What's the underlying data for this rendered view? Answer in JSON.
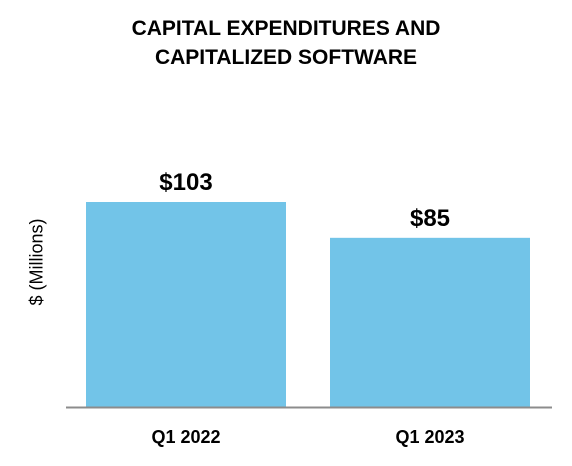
{
  "colors": {
    "bar": "#72C4E8",
    "axis": "#8C8C8C",
    "text": "#000000"
  },
  "chart_data": {
    "type": "bar",
    "title_lines": [
      "CAPITAL EXPENDITURES AND",
      "CAPITALIZED SOFTWARE"
    ],
    "ylabel": "$ (Millions)",
    "xlabel": "",
    "categories": [
      "Q1 2022",
      "Q1 2023"
    ],
    "values": [
      103,
      85
    ],
    "data_labels": [
      "$103",
      "$85"
    ],
    "ylim": [
      0,
      115
    ],
    "grid": false,
    "legend": "none"
  }
}
